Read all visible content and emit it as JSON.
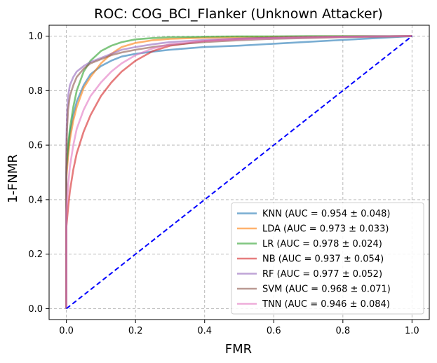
{
  "chart_data": {
    "type": "line",
    "title": "ROC: COG_BCI_Flanker (Unknown Attacker)",
    "xlabel": "FMR",
    "ylabel": "1-FNMR",
    "xlim": [
      -0.05,
      1.05
    ],
    "ylim": [
      -0.04,
      1.04
    ],
    "xticks": [
      "0.0",
      "0.2",
      "0.4",
      "0.6",
      "0.8",
      "1.0"
    ],
    "yticks": [
      "0.0",
      "0.2",
      "0.4",
      "0.6",
      "0.8",
      "1.0"
    ],
    "grid": true,
    "legend_position": "lower-right",
    "series": [
      {
        "name": "KNN (AUC = 0.954 ± 0.048)",
        "color": "#1f77b4",
        "x": [
          0,
          0,
          0.005,
          0.01,
          0.02,
          0.03,
          0.05,
          0.07,
          0.1,
          0.13,
          0.16,
          0.2,
          0.25,
          0.3,
          0.4,
          0.5,
          0.6,
          0.7,
          0.8,
          0.9,
          1.0
        ],
        "y": [
          0,
          0.5,
          0.58,
          0.64,
          0.71,
          0.76,
          0.82,
          0.86,
          0.89,
          0.91,
          0.925,
          0.935,
          0.943,
          0.95,
          0.96,
          0.965,
          0.972,
          0.979,
          0.986,
          0.993,
          1.0
        ]
      },
      {
        "name": "LDA (AUC = 0.973 ± 0.033)",
        "color": "#ff7f0e",
        "x": [
          0,
          0,
          0.005,
          0.01,
          0.02,
          0.03,
          0.05,
          0.07,
          0.1,
          0.13,
          0.16,
          0.2,
          0.25,
          0.3,
          0.4,
          0.5,
          0.6,
          0.7,
          0.8,
          0.9,
          1.0
        ],
        "y": [
          0,
          0.48,
          0.56,
          0.62,
          0.69,
          0.74,
          0.81,
          0.85,
          0.9,
          0.935,
          0.96,
          0.975,
          0.985,
          0.99,
          0.994,
          0.996,
          0.997,
          0.998,
          0.999,
          0.999,
          1.0
        ]
      },
      {
        "name": "LR (AUC = 0.978 ± 0.024)",
        "color": "#2ca02c",
        "x": [
          0,
          0,
          0.005,
          0.01,
          0.02,
          0.03,
          0.05,
          0.07,
          0.1,
          0.13,
          0.16,
          0.2,
          0.25,
          0.3,
          0.4,
          0.5,
          0.6,
          0.7,
          0.8,
          0.9,
          1.0
        ],
        "y": [
          0,
          0.52,
          0.6,
          0.66,
          0.74,
          0.8,
          0.87,
          0.91,
          0.945,
          0.965,
          0.978,
          0.988,
          0.993,
          0.996,
          0.998,
          0.999,
          0.999,
          1.0,
          1.0,
          1.0,
          1.0
        ]
      },
      {
        "name": "NB (AUC = 0.937 ± 0.054)",
        "color": "#d62728",
        "x": [
          0,
          0,
          0.005,
          0.01,
          0.02,
          0.03,
          0.05,
          0.07,
          0.1,
          0.13,
          0.16,
          0.2,
          0.25,
          0.3,
          0.4,
          0.5,
          0.6,
          0.7,
          0.8,
          0.9,
          1.0
        ],
        "y": [
          0,
          0.3,
          0.37,
          0.43,
          0.51,
          0.57,
          0.65,
          0.71,
          0.78,
          0.83,
          0.87,
          0.91,
          0.945,
          0.965,
          0.982,
          0.99,
          0.994,
          0.996,
          0.998,
          0.999,
          1.0
        ]
      },
      {
        "name": "RF (AUC = 0.977 ± 0.052)",
        "color": "#9467bd",
        "x": [
          0,
          0,
          0.002,
          0.005,
          0.01,
          0.02,
          0.03,
          0.05,
          0.07,
          0.1,
          0.13,
          0.16,
          0.2,
          0.25,
          0.3,
          0.4,
          0.5,
          0.6,
          0.7,
          0.8,
          0.9,
          1.0
        ],
        "y": [
          0,
          0.62,
          0.72,
          0.78,
          0.82,
          0.85,
          0.87,
          0.89,
          0.905,
          0.92,
          0.935,
          0.95,
          0.96,
          0.97,
          0.978,
          0.986,
          0.991,
          0.994,
          0.996,
          0.998,
          0.999,
          1.0
        ]
      },
      {
        "name": "SVM (AUC = 0.968 ± 0.071)",
        "color": "#8c564b",
        "x": [
          0,
          0,
          0.002,
          0.005,
          0.01,
          0.02,
          0.03,
          0.05,
          0.07,
          0.1,
          0.13,
          0.16,
          0.2,
          0.25,
          0.3,
          0.4,
          0.5,
          0.6,
          0.7,
          0.8,
          0.9,
          1.0
        ],
        "y": [
          0,
          0.55,
          0.66,
          0.73,
          0.78,
          0.82,
          0.85,
          0.88,
          0.9,
          0.915,
          0.93,
          0.94,
          0.95,
          0.96,
          0.968,
          0.978,
          0.985,
          0.99,
          0.993,
          0.996,
          0.998,
          1.0
        ]
      },
      {
        "name": "TNN (AUC = 0.946 ± 0.084)",
        "color": "#e377c2",
        "x": [
          0,
          0,
          0.005,
          0.01,
          0.02,
          0.03,
          0.05,
          0.07,
          0.1,
          0.13,
          0.16,
          0.2,
          0.25,
          0.3,
          0.4,
          0.5,
          0.6,
          0.7,
          0.8,
          0.9,
          1.0
        ],
        "y": [
          0,
          0.35,
          0.45,
          0.52,
          0.6,
          0.66,
          0.73,
          0.78,
          0.83,
          0.87,
          0.9,
          0.93,
          0.955,
          0.97,
          0.982,
          0.988,
          0.992,
          0.995,
          0.997,
          0.999,
          1.0
        ]
      }
    ],
    "reference_line": {
      "x": [
        0,
        1
      ],
      "y": [
        0,
        1
      ],
      "color": "#0000ff",
      "style": "dashed"
    }
  }
}
